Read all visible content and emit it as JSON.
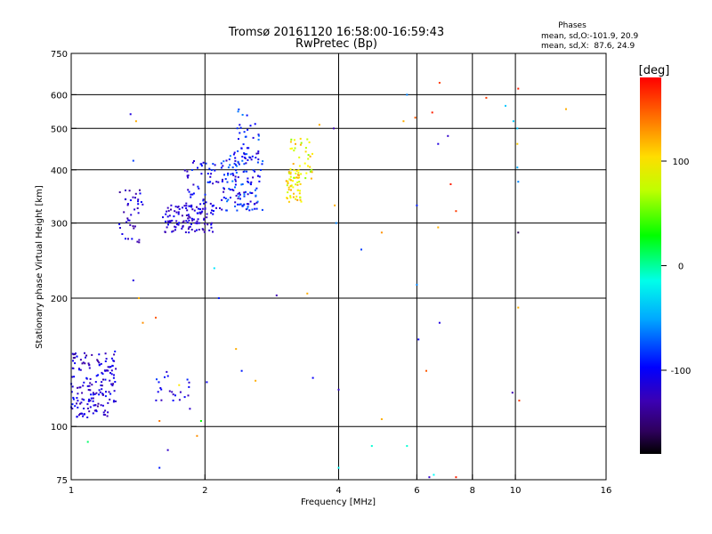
{
  "chart_data": {
    "type": "scatter",
    "title": "Tromsø 20161120 16:58:00-16:59:43",
    "subtitle": "RwPretec (Bp)",
    "xlabel": "Frequency [MHz]",
    "ylabel": "Stationary phase Virtual Height [km]",
    "x_scale": "log",
    "y_scale": "log",
    "xlim": [
      1,
      16
    ],
    "ylim": [
      75,
      750
    ],
    "x_ticks": [
      {
        "value": 1,
        "label": "1"
      },
      {
        "value": 2,
        "label": "2"
      },
      {
        "value": 4,
        "label": "4"
      },
      {
        "value": 6,
        "label": "6"
      },
      {
        "value": 8,
        "label": "8"
      },
      {
        "value": 10,
        "label": "10"
      },
      {
        "value": 16,
        "label": "16"
      }
    ],
    "y_ticks": [
      {
        "value": 75,
        "label": "75"
      },
      {
        "value": 100,
        "label": "100"
      },
      {
        "value": 200,
        "label": "200"
      },
      {
        "value": 300,
        "label": "300"
      },
      {
        "value": 400,
        "label": "400"
      },
      {
        "value": 500,
        "label": "500"
      },
      {
        "value": 600,
        "label": "600"
      },
      {
        "value": 750,
        "label": "750"
      }
    ],
    "x_gridlines": [
      2,
      4,
      6,
      8,
      10
    ],
    "y_gridlines": [
      100,
      200,
      300,
      400,
      500,
      600
    ],
    "phase_info": {
      "heading": "Phases",
      "line1": "mean, sd,O:-101.9, 20.9",
      "line2": "mean, sd,X:  87.6, 24.9"
    },
    "colorbar": {
      "label": "[deg]",
      "range": [
        -180,
        180
      ],
      "ticks": [
        {
          "value": 100,
          "label": "100"
        },
        {
          "value": 0,
          "label": "0"
        },
        {
          "value": -100,
          "label": "-100"
        }
      ]
    },
    "clusters": [
      {
        "x": [
          1.0,
          1.26
        ],
        "y": [
          105,
          150
        ],
        "phase": [
          -140,
          -90
        ],
        "n": 170
      },
      {
        "x": [
          1.28,
          1.45
        ],
        "y": [
          270,
          360
        ],
        "phase": [
          -140,
          -95
        ],
        "n": 40
      },
      {
        "x": [
          1.55,
          1.85
        ],
        "y": [
          115,
          135
        ],
        "phase": [
          -130,
          -80
        ],
        "n": 22
      },
      {
        "x": [
          1.6,
          2.1
        ],
        "y": [
          285,
          330
        ],
        "phase": [
          -135,
          -95
        ],
        "n": 110
      },
      {
        "x": [
          1.8,
          2.2
        ],
        "y": [
          320,
          420
        ],
        "phase": [
          -125,
          -80
        ],
        "n": 60
      },
      {
        "x": [
          2.2,
          2.7
        ],
        "y": [
          320,
          450
        ],
        "phase": [
          -125,
          -60
        ],
        "n": 130
      },
      {
        "x": [
          2.35,
          2.65
        ],
        "y": [
          420,
          560
        ],
        "phase": [
          -115,
          -60
        ],
        "n": 30
      },
      {
        "x": [
          3.05,
          3.3
        ],
        "y": [
          335,
          400
        ],
        "phase": [
          70,
          130
        ],
        "n": 50
      },
      {
        "x": [
          3.1,
          3.5
        ],
        "y": [
          380,
          480
        ],
        "phase": [
          60,
          125
        ],
        "n": 40
      }
    ],
    "points": [
      [
        1.09,
        92,
        10
      ],
      [
        1.36,
        540,
        -110
      ],
      [
        1.4,
        520,
        120
      ],
      [
        1.38,
        420,
        -80
      ],
      [
        1.38,
        220,
        -110
      ],
      [
        1.42,
        200,
        120
      ],
      [
        1.45,
        175,
        130
      ],
      [
        1.55,
        180,
        150
      ],
      [
        1.58,
        103,
        140
      ],
      [
        1.58,
        80,
        -90
      ],
      [
        1.65,
        88,
        -120
      ],
      [
        1.75,
        125,
        100
      ],
      [
        1.85,
        110,
        -120
      ],
      [
        1.92,
        95,
        130
      ],
      [
        1.96,
        103,
        30
      ],
      [
        2.02,
        127,
        -100
      ],
      [
        2.1,
        235,
        -30
      ],
      [
        2.15,
        200,
        -90
      ],
      [
        2.35,
        152,
        120
      ],
      [
        2.42,
        135,
        -90
      ],
      [
        2.6,
        128,
        120
      ],
      [
        2.9,
        203,
        -130
      ],
      [
        3.4,
        205,
        120
      ],
      [
        3.5,
        130,
        -100
      ],
      [
        3.62,
        510,
        120
      ],
      [
        3.9,
        500,
        -130
      ],
      [
        3.92,
        330,
        120
      ],
      [
        3.95,
        300,
        -60
      ],
      [
        4.0,
        122,
        -120
      ],
      [
        4.0,
        80,
        -20
      ],
      [
        4.5,
        260,
        -80
      ],
      [
        4.75,
        90,
        -10
      ],
      [
        5.0,
        285,
        130
      ],
      [
        5.0,
        104,
        120
      ],
      [
        5.6,
        520,
        120
      ],
      [
        5.7,
        90,
        -10
      ],
      [
        5.7,
        600,
        -60
      ],
      [
        5.95,
        530,
        150
      ],
      [
        6.0,
        330,
        -90
      ],
      [
        6.0,
        215,
        -60
      ],
      [
        6.05,
        160,
        -100
      ],
      [
        6.3,
        135,
        150
      ],
      [
        6.4,
        76,
        -120
      ],
      [
        6.55,
        77,
        -20
      ],
      [
        6.5,
        545,
        170
      ],
      [
        6.75,
        640,
        160
      ],
      [
        6.7,
        460,
        -110
      ],
      [
        6.75,
        175,
        -110
      ],
      [
        6.7,
        293,
        120
      ],
      [
        7.05,
        480,
        -120
      ],
      [
        7.15,
        370,
        170
      ],
      [
        7.35,
        320,
        160
      ],
      [
        7.35,
        76,
        170
      ],
      [
        8.6,
        590,
        160
      ],
      [
        9.5,
        565,
        -40
      ],
      [
        9.85,
        120,
        -130
      ],
      [
        9.9,
        520,
        -40
      ],
      [
        10.1,
        500,
        -40
      ],
      [
        10.1,
        460,
        110
      ],
      [
        10.1,
        405,
        -50
      ],
      [
        10.15,
        375,
        -60
      ],
      [
        10.15,
        285,
        -160
      ],
      [
        10.15,
        190,
        120
      ],
      [
        10.2,
        115,
        160
      ],
      [
        10.15,
        620,
        170
      ],
      [
        13.0,
        555,
        120
      ]
    ]
  }
}
